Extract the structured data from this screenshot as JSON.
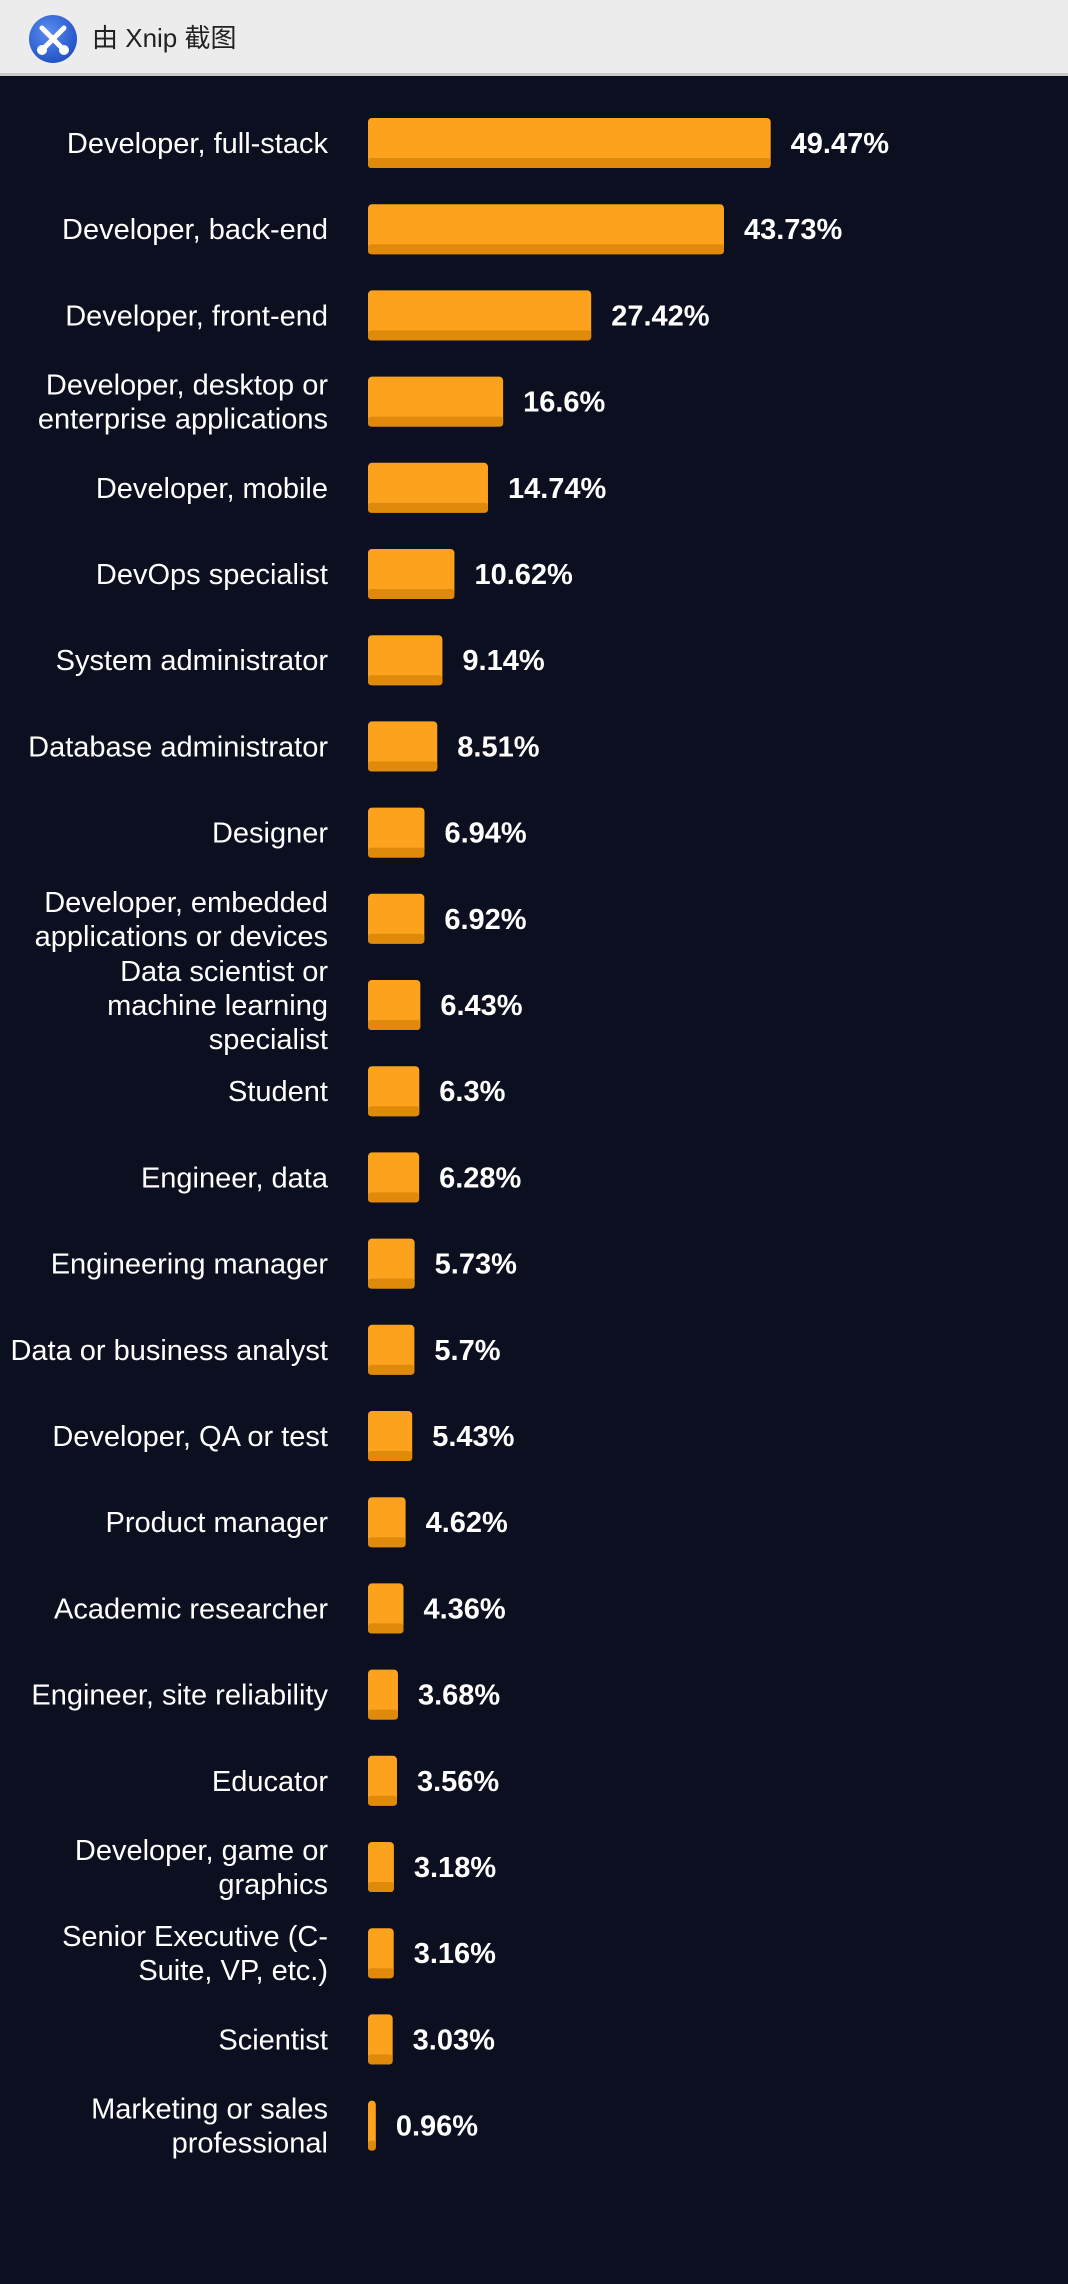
{
  "window": {
    "title": "由 Xnip 截图",
    "logo_icon": "xnip-logo-icon"
  },
  "chart_data": {
    "type": "bar",
    "orientation": "horizontal",
    "title": "",
    "xlabel": "",
    "ylabel": "",
    "value_suffix": "%",
    "bar_color": "#fca21c",
    "bar_shade_color": "#e08a0c",
    "background_color": "#0c0f1f",
    "grid": false,
    "legend": "none",
    "categories": [
      [
        "Developer, full-stack"
      ],
      [
        "Developer, back-end"
      ],
      [
        "Developer, front-end"
      ],
      [
        "Developer, desktop or",
        "enterprise applications"
      ],
      [
        "Developer, mobile"
      ],
      [
        "DevOps specialist"
      ],
      [
        "System administrator"
      ],
      [
        "Database administrator"
      ],
      [
        "Designer"
      ],
      [
        "Developer, embedded",
        "applications or devices"
      ],
      [
        "Data scientist or",
        "machine learning",
        "specialist"
      ],
      [
        "Student"
      ],
      [
        "Engineer, data"
      ],
      [
        "Engineering manager"
      ],
      [
        "Data or business analyst"
      ],
      [
        "Developer, QA or test"
      ],
      [
        "Product manager"
      ],
      [
        "Academic researcher"
      ],
      [
        "Engineer, site reliability"
      ],
      [
        "Educator"
      ],
      [
        "Developer, game or",
        "graphics"
      ],
      [
        "Senior Executive (C-",
        "Suite, VP, etc.)"
      ],
      [
        "Scientist"
      ],
      [
        "Marketing or sales",
        "professional"
      ]
    ],
    "values": [
      49.47,
      43.73,
      27.42,
      16.6,
      14.74,
      10.62,
      9.14,
      8.51,
      6.94,
      6.92,
      6.43,
      6.3,
      6.28,
      5.73,
      5.7,
      5.43,
      4.62,
      4.36,
      3.68,
      3.56,
      3.18,
      3.16,
      3.03,
      0.96
    ]
  }
}
